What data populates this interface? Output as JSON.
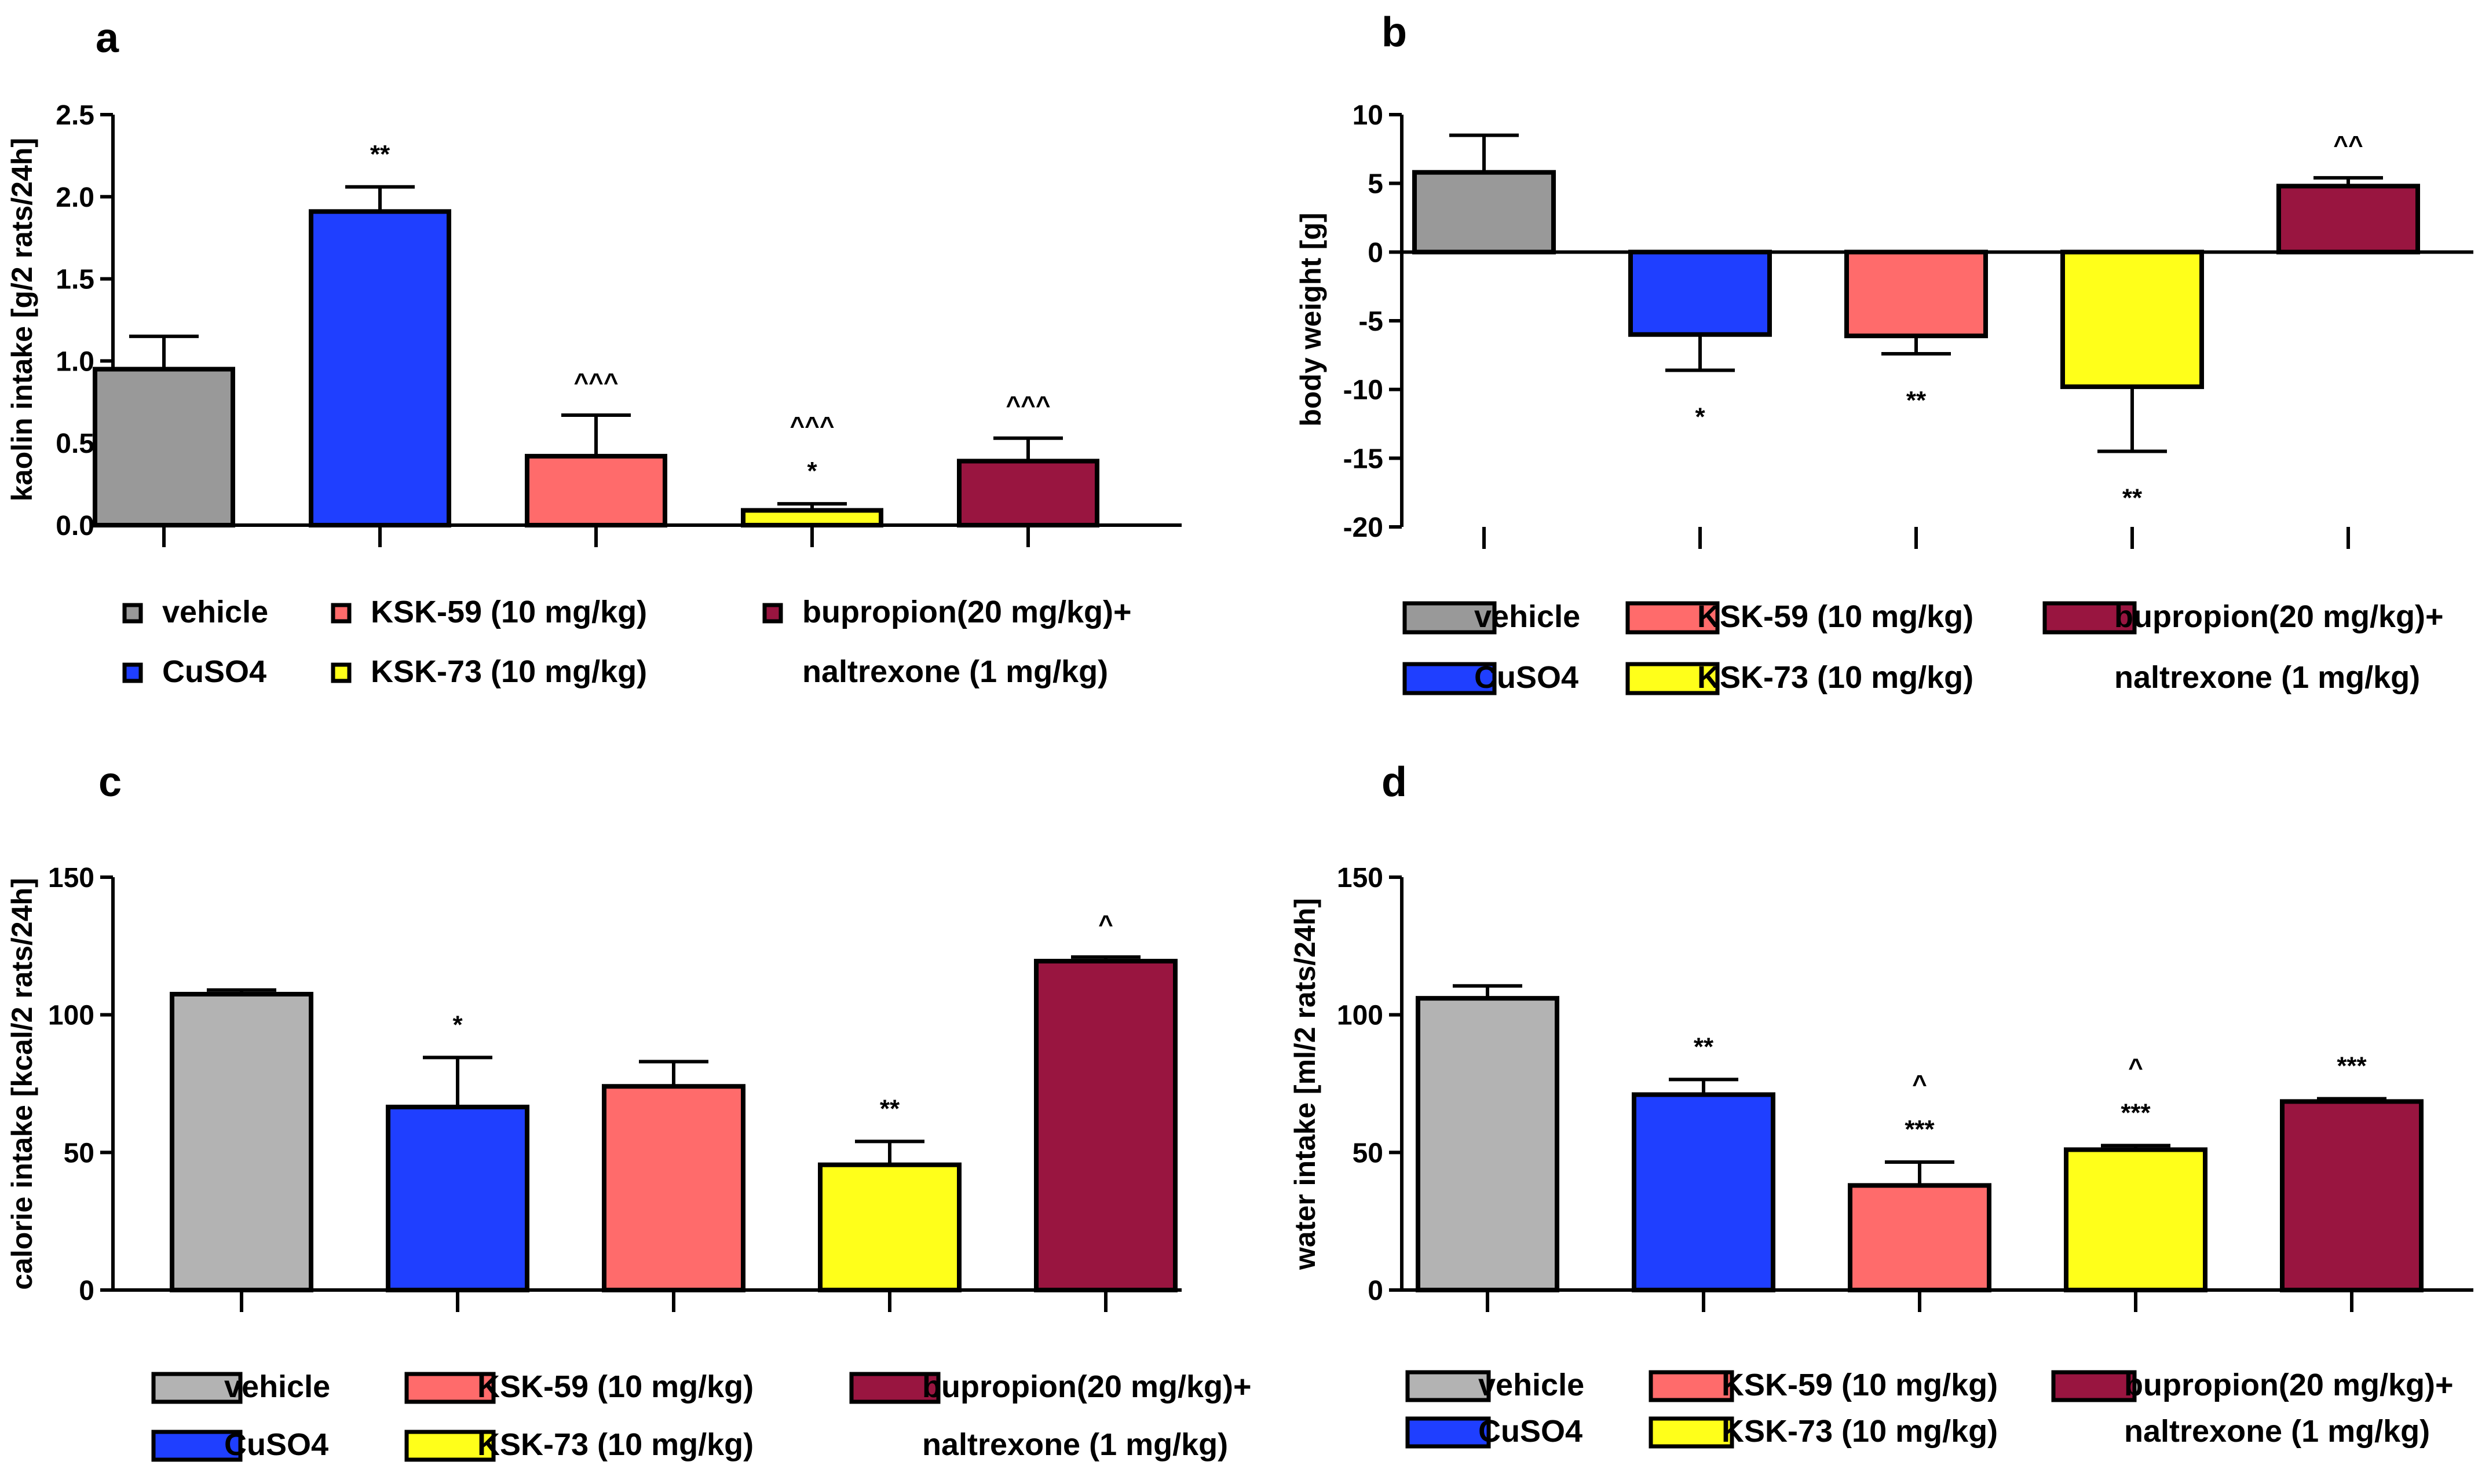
{
  "chart_data": [
    {
      "panel": "a",
      "type": "bar",
      "ylabel": "kaolin intake [g/2 rats/24h]",
      "ylim": [
        0,
        2.5
      ],
      "yticks": [
        0.0,
        0.5,
        1.0,
        1.5,
        2.0,
        2.5
      ],
      "tick_labels": [
        "0.0",
        "0.5",
        "1.0",
        "1.5",
        "2.0",
        "2.5"
      ],
      "categories": [
        "vehicle",
        "CuSO4",
        "KSK-59 (10 mg/kg)",
        "KSK-73 (10 mg/kg)",
        "bupropion(20 mg/kg)+ naltrexone (1 mg/kg)"
      ],
      "colors": [
        "#999999",
        "#1f3fff",
        "#ff6b6b",
        "#ffff1a",
        "#991540"
      ],
      "values": [
        0.95,
        1.91,
        0.42,
        0.09,
        0.39
      ],
      "errors": [
        0.2,
        0.15,
        0.25,
        0.04,
        0.14
      ],
      "annotations": [
        [],
        [
          "**"
        ],
        [
          "^^^"
        ],
        [
          "^^^",
          "*"
        ],
        [
          "^^^"
        ]
      ]
    },
    {
      "panel": "b",
      "type": "bar",
      "ylabel": "body weight [g]",
      "ylim": [
        -20,
        10
      ],
      "yticks": [
        10,
        5,
        0,
        -5,
        -10,
        -15,
        -20
      ],
      "tick_labels": [
        "10",
        "5",
        "0",
        "-5",
        "-10",
        "-15",
        "-20"
      ],
      "categories": [
        "vehicle",
        "CuSO4",
        "KSK-59 (10 mg/kg)",
        "KSK-73 (10 mg/kg)",
        "bupropion(20 mg/kg)+ naltrexone (1 mg/kg)"
      ],
      "colors": [
        "#999999",
        "#1f3fff",
        "#ff6b6b",
        "#ffff1a",
        "#991540"
      ],
      "values": [
        5.8,
        -6.0,
        -6.1,
        -9.8,
        4.8
      ],
      "errors": [
        2.7,
        2.6,
        1.3,
        4.7,
        0.6
      ],
      "annotations": [
        [],
        [
          "*"
        ],
        [
          "**"
        ],
        [
          "**"
        ],
        [
          "^^"
        ]
      ]
    },
    {
      "panel": "c",
      "type": "bar",
      "ylabel": "calorie intake [kcal/2 rats/24h]",
      "ylim": [
        0,
        150
      ],
      "yticks": [
        0,
        50,
        100,
        150
      ],
      "tick_labels": [
        "0",
        "50",
        "100",
        "150"
      ],
      "categories": [
        "vehicle",
        "CuSO4",
        "KSK-59 (10 mg/kg)",
        "KSK-73 (10 mg/kg)",
        "bupropion(20 mg/kg)+ naltrexone (1 mg/kg)"
      ],
      "colors": [
        "#b3b3b3",
        "#1f3fff",
        "#ff6b6b",
        "#ffff1a",
        "#991540"
      ],
      "values": [
        107.5,
        66.5,
        74,
        45.5,
        119.5
      ],
      "errors": [
        1.5,
        18,
        9,
        8.5,
        1.5
      ],
      "annotations": [
        [],
        [
          "*"
        ],
        [],
        [
          "**"
        ],
        [
          "^"
        ]
      ]
    },
    {
      "panel": "d",
      "type": "bar",
      "ylabel": "water intake [ml/2 rats/24h]",
      "ylim": [
        0,
        150
      ],
      "yticks": [
        0,
        50,
        100,
        150
      ],
      "tick_labels": [
        "0",
        "50",
        "100",
        "150"
      ],
      "categories": [
        "vehicle",
        "CuSO4",
        "KSK-59 (10 mg/kg)",
        "KSK-73 (10 mg/kg)",
        "bupropion(20 mg/kg)+ naltrexone (1 mg/kg)"
      ],
      "colors": [
        "#b3b3b3",
        "#1f3fff",
        "#ff6b6b",
        "#ffff1a",
        "#991540"
      ],
      "values": [
        106,
        71,
        38,
        51,
        68.5
      ],
      "errors": [
        4.5,
        5.5,
        8.5,
        1.5,
        1
      ],
      "annotations": [
        [],
        [
          "**"
        ],
        [
          "^",
          "***"
        ],
        [
          "^",
          "***"
        ],
        [
          "***"
        ]
      ]
    }
  ],
  "legend": {
    "vehicle": "vehicle",
    "cuso4": "CuSO4",
    "ksk59": "KSK-59 (10 mg/kg)",
    "ksk73": "KSK-73 (10 mg/kg)",
    "bupropion_line1": "bupropion(20 mg/kg)+",
    "bupropion_line2": "naltrexone (1 mg/kg)"
  }
}
